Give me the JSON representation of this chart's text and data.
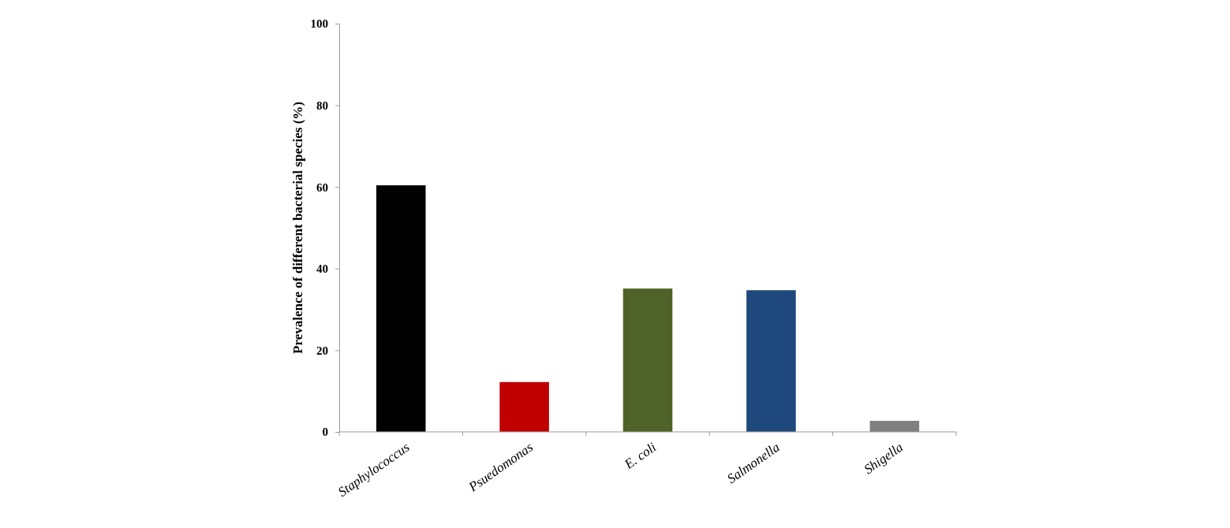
{
  "chart_data": {
    "type": "bar",
    "ylabel": "Prevalence of different bacterial species (%)",
    "categories": [
      "Staphylococcus",
      "Psuedomonas",
      "E. coli",
      "Salmonella",
      "Shigella"
    ],
    "values": [
      60.4,
      12.2,
      35.1,
      34.7,
      2.7
    ],
    "colors": [
      "#000000",
      "#c00000",
      "#4f6228",
      "#1f497d",
      "#808080"
    ],
    "ylim": [
      0,
      100
    ],
    "yticks": [
      0,
      20,
      40,
      60,
      80,
      100
    ],
    "grid": false,
    "legend": false
  }
}
